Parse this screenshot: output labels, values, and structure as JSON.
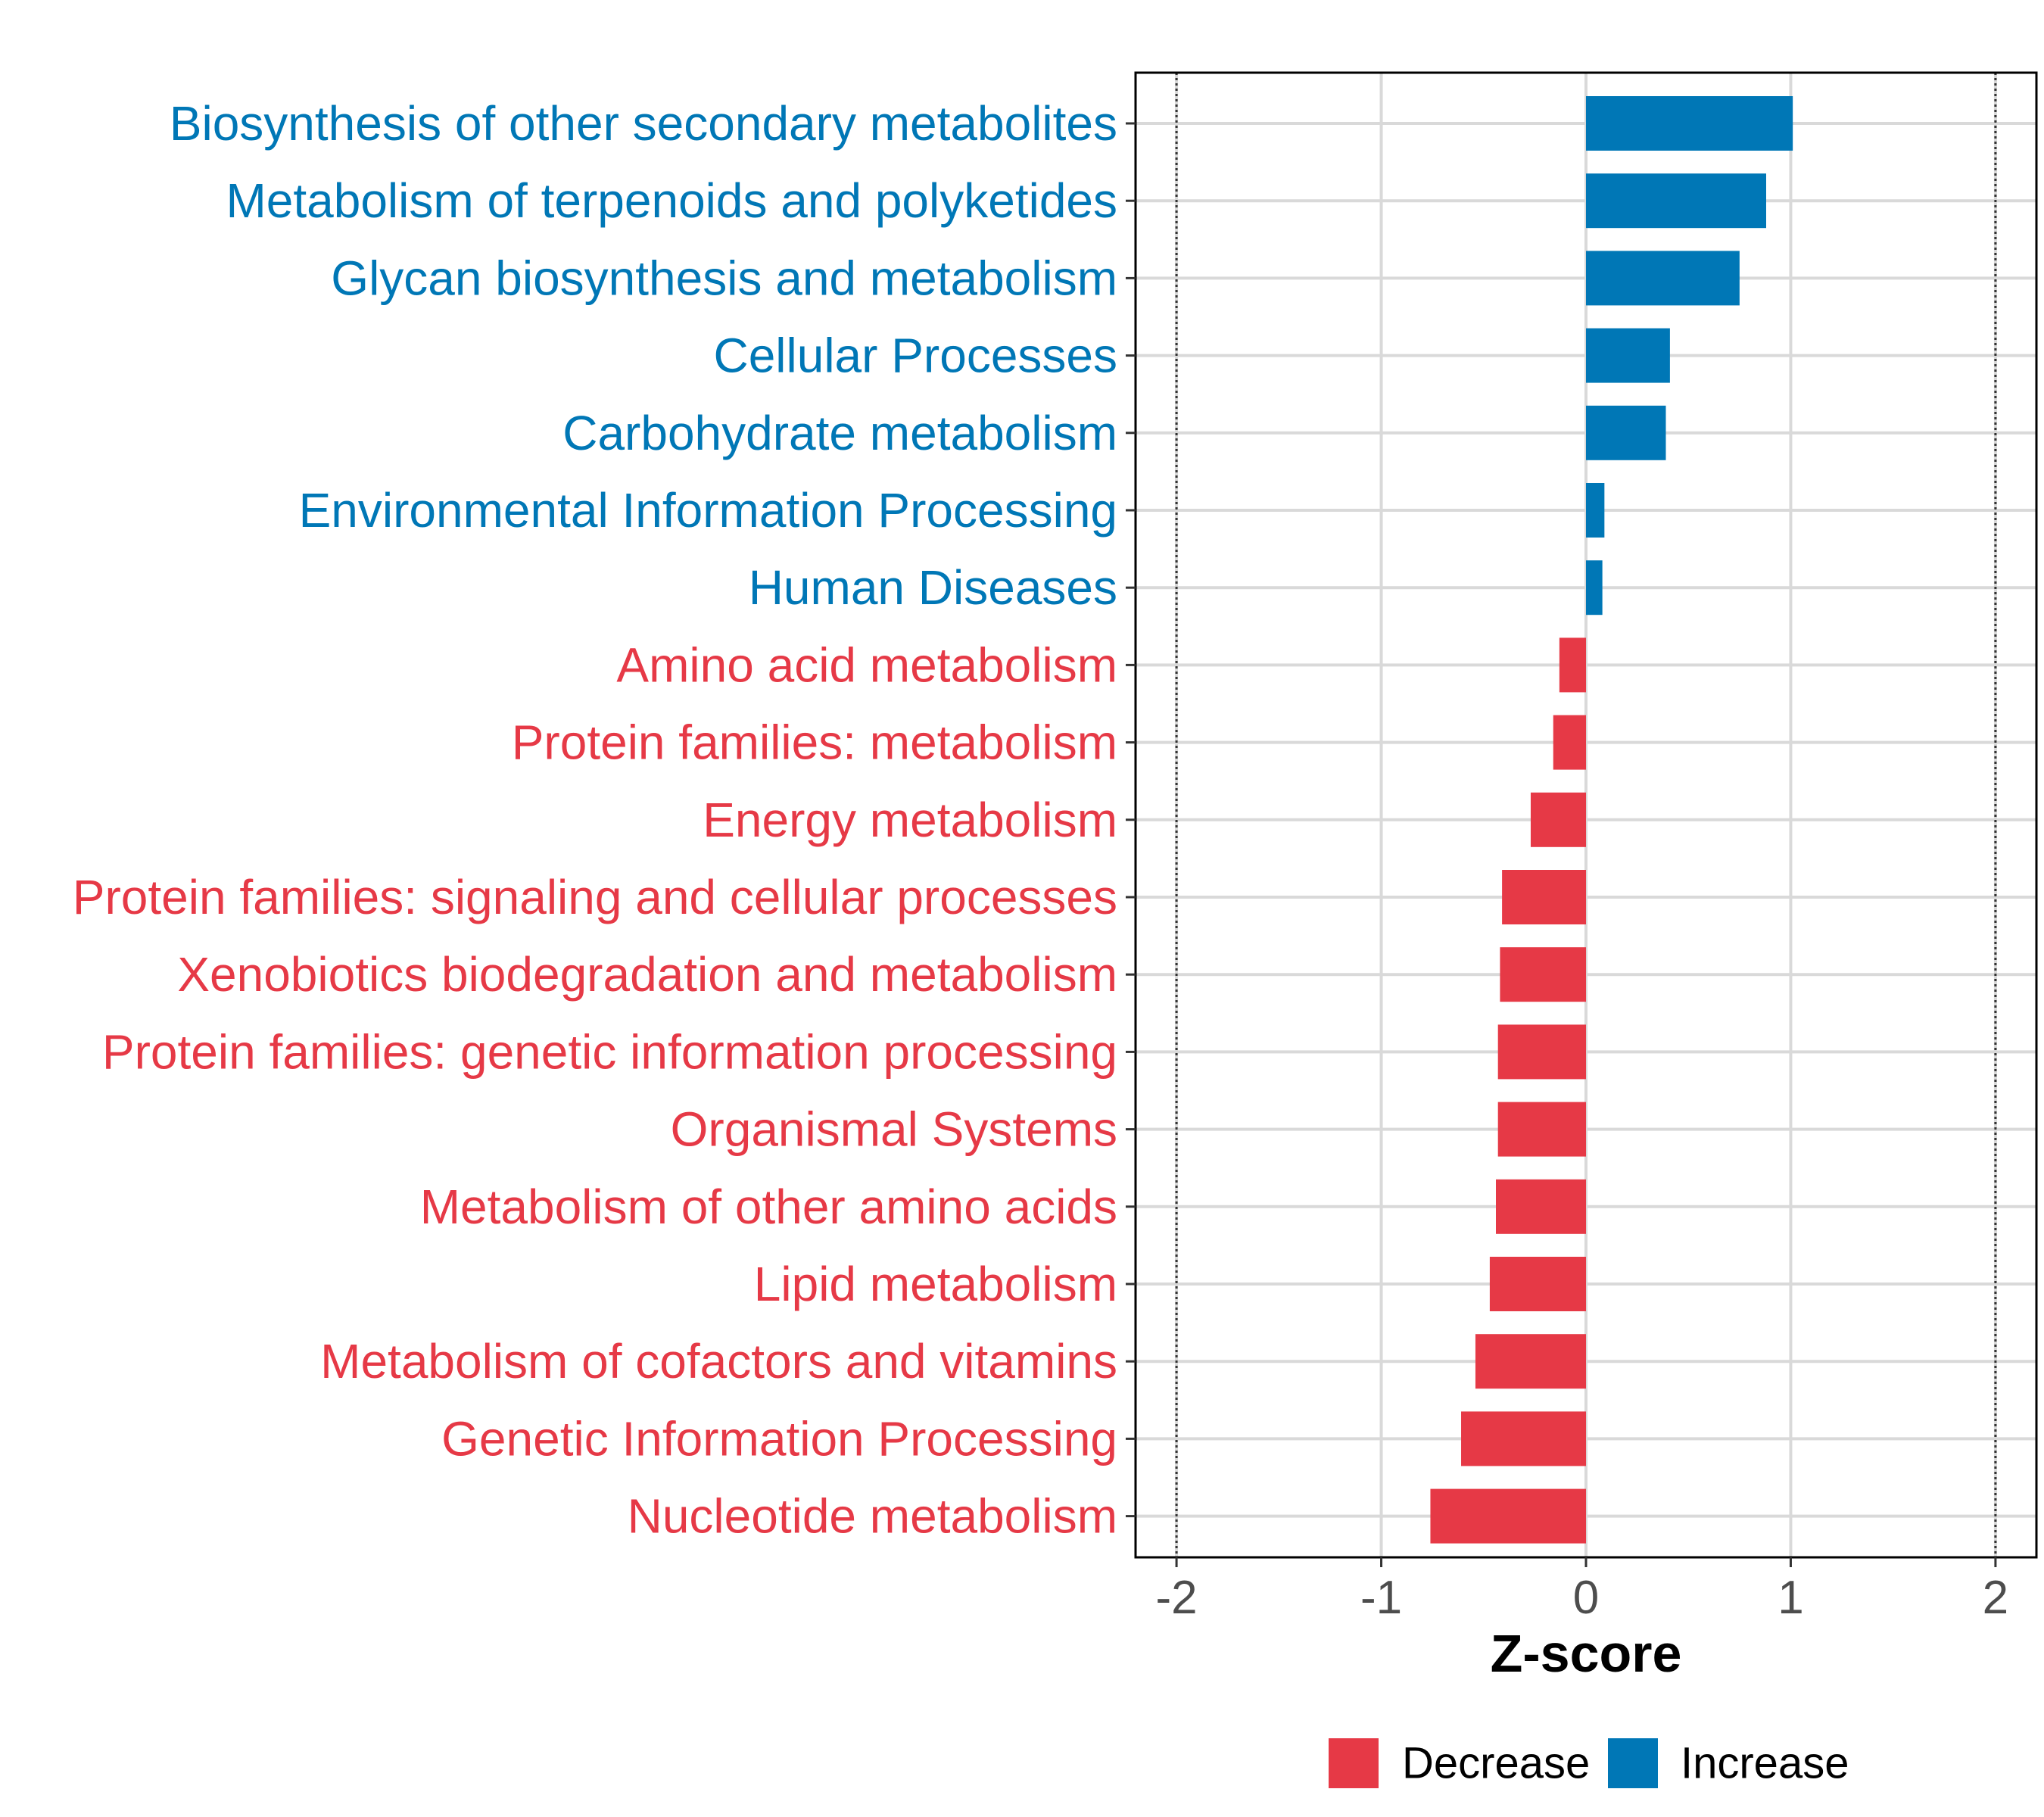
{
  "chart_data": {
    "type": "bar",
    "orientation": "horizontal",
    "categories": [
      "Biosynthesis of other secondary metabolites",
      "Metabolism of terpenoids and polyketides",
      "Glycan biosynthesis and metabolism",
      "Cellular Processes",
      "Carbohydrate metabolism",
      "Environmental Information Processing",
      "Human Diseases",
      "Amino acid metabolism",
      "Protein families: metabolism",
      "Energy metabolism",
      "Protein families: signaling and cellular processes",
      "Xenobiotics biodegradation and metabolism",
      "Protein families: genetic information processing",
      "Organismal Systems",
      "Metabolism of other amino acids",
      "Lipid metabolism",
      "Metabolism of cofactors and vitamins",
      "Genetic Information Processing",
      "Nucleotide metabolism"
    ],
    "values": [
      1.01,
      0.88,
      0.75,
      0.41,
      0.39,
      0.09,
      0.08,
      -0.13,
      -0.16,
      -0.27,
      -0.41,
      -0.42,
      -0.43,
      -0.43,
      -0.44,
      -0.47,
      -0.54,
      -0.61,
      -0.76
    ],
    "groups": [
      "Increase",
      "Increase",
      "Increase",
      "Increase",
      "Increase",
      "Increase",
      "Increase",
      "Decrease",
      "Decrease",
      "Decrease",
      "Decrease",
      "Decrease",
      "Decrease",
      "Decrease",
      "Decrease",
      "Decrease",
      "Decrease",
      "Decrease",
      "Decrease"
    ],
    "xlabel": "Z-score",
    "ylabel": "",
    "xlim": [
      -2.2,
      2.2
    ],
    "xticks": [
      -2,
      -1,
      0,
      1,
      2
    ],
    "xtick_labels": [
      "-2",
      "-1",
      "0",
      "1",
      "2"
    ],
    "reference_lines": [
      -2,
      2
    ],
    "grid": true,
    "legend": {
      "placement": "bottom",
      "items": [
        {
          "label": "Decrease",
          "color": "#E63946"
        },
        {
          "label": "Increase",
          "color": "#0077B6"
        }
      ]
    }
  },
  "colors": {
    "decrease": "#E63946",
    "increase": "#0077B6",
    "grid": "#D9D9D9",
    "axis": "#000000",
    "tick_text": "#4D4D4D"
  }
}
